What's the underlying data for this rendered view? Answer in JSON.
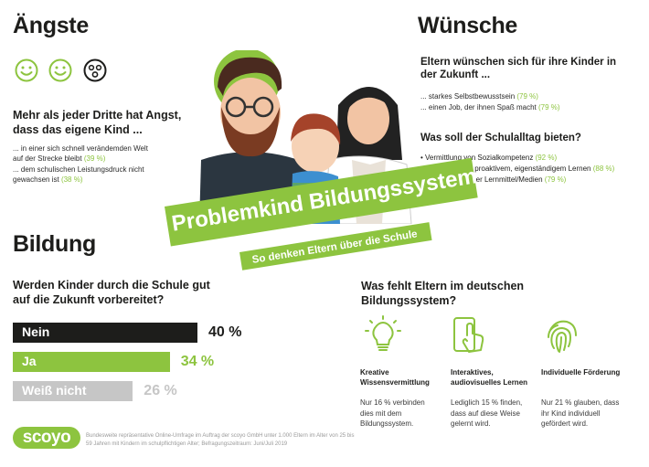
{
  "fears": {
    "title": "Ängste",
    "lead": "Mehr als jeder Dritte hat Angst, dass das eigene Kind ...",
    "items": [
      {
        "text": "... in einer sich schnell verändemden Welt auf der Strecke bleibt",
        "pct": "(39 %)"
      },
      {
        "text": "... dem schulischen Leistungsdruck nicht gewachsen ist",
        "pct": "(38 %)"
      }
    ]
  },
  "wishes": {
    "title": "Wünsche",
    "lead": "Eltern wünschen sich für ihre Kinder in der Zukunft ...",
    "items": [
      {
        "text": "... starkes Selbstbewusstsein",
        "pct": "(79 %)"
      },
      {
        "text": "... einen Job, der ihnen Spaß macht",
        "pct": "(79 %)"
      }
    ],
    "q2": "Was soll der Schulalltag bieten?",
    "bullets": [
      {
        "text": "Vermittlung von Sozialkompetenz",
        "pct": "(92 %)"
      },
      {
        "text": "Förderung von proaktivem, eigenständigem Lernen",
        "pct": "(88 %)"
      },
      {
        "text": "Einsatz moderner Lernmittel/Medien",
        "pct": "(79 %)"
      }
    ]
  },
  "banner": {
    "title": "Problemkind Bildungssystem",
    "subtitle": "So denken Eltern über die Schule"
  },
  "education": {
    "title": "Bildung",
    "question": "Werden Kinder durch die Schule gut auf die Zukunft vorbereitet?"
  },
  "chart_data": {
    "type": "bar",
    "categories": [
      "Nein",
      "Ja",
      "Weiß nicht"
    ],
    "values": [
      40,
      34,
      26
    ],
    "value_labels": [
      "40 %",
      "34 %",
      "26 %"
    ],
    "colors": [
      "#1d1d1b",
      "#8dc43f",
      "#c6c6c6"
    ],
    "title": "",
    "xlabel": "",
    "ylabel": ""
  },
  "missing": {
    "title": "Was fehlt Eltern im deutschen Bildungssystem?",
    "cols": [
      {
        "icon": "lightbulb-icon",
        "title": "Kreative Wissensvermittlung",
        "text": "Nur 16 % verbinden dies mit dem Bildungssystem."
      },
      {
        "icon": "tablet-touch-icon",
        "title": "Interaktives, audiovisuelles Lernen",
        "text": "Lediglich 15 % finden, dass auf diese Weise gelernt wird."
      },
      {
        "icon": "fingerprint-icon",
        "title": "Individuelle Förderung",
        "text": "Nur 21 % glauben, dass ihr Kind individuell gefördert wird."
      }
    ]
  },
  "footer": {
    "logo": "scoyo",
    "note": "Bundesweite repräsentative Online-Umfrage im Auftrag der scoyo GmbH unter 1.000 Eltern im Alter von 25 bis 59 Jahren mit Kindern im schulpflichtigen Alter; Befragungszeitraum: Juni/Juli 2019"
  },
  "colors": {
    "accent": "#8dc43f",
    "dark": "#1d1d1b",
    "grey": "#c6c6c6"
  }
}
